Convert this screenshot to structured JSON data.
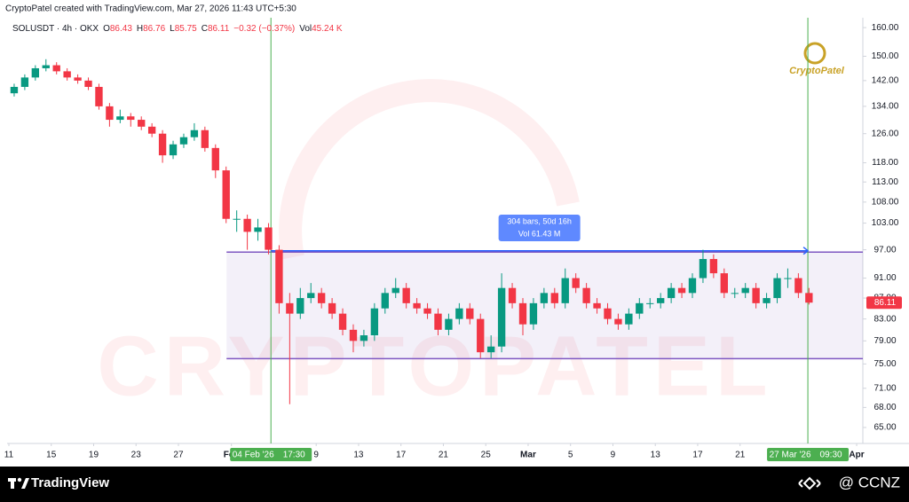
{
  "chart_data": {
    "type": "candlestick",
    "header": "CryptoPatel created with TradingView.com, Mar 27, 2026 11:43 UTC+5:30",
    "legend": {
      "symbol": "SOLUSDT · 4h · OKX",
      "items": [
        {
          "key": "O",
          "value": 86.43
        },
        {
          "key": "H",
          "value": 86.76
        },
        {
          "key": "L",
          "value": 85.75
        },
        {
          "key": "C",
          "value": 86.11
        }
      ],
      "change": "−0.32 (−0.37%)",
      "volume_key": "Vol",
      "volume": "45.24 K"
    },
    "up_color": "#089981",
    "down_color": "#f23645",
    "log_scale": true,
    "x": [
      "2026-01-11",
      "2026-01-12",
      "2026-01-13",
      "2026-01-14",
      "2026-01-15",
      "2026-01-16",
      "2026-01-17",
      "2026-01-18",
      "2026-01-19",
      "2026-01-20",
      "2026-01-21",
      "2026-01-22",
      "2026-01-23",
      "2026-01-24",
      "2026-01-25",
      "2026-01-26",
      "2026-01-27",
      "2026-01-28",
      "2026-01-29",
      "2026-01-30",
      "2026-01-31",
      "2026-02-01",
      "2026-02-02",
      "2026-02-03",
      "2026-02-04",
      "2026-02-05",
      "2026-02-06",
      "2026-02-07",
      "2026-02-08",
      "2026-02-09",
      "2026-02-10",
      "2026-02-11",
      "2026-02-12",
      "2026-02-13",
      "2026-02-14",
      "2026-02-15",
      "2026-02-16",
      "2026-02-17",
      "2026-02-18",
      "2026-02-19",
      "2026-02-20",
      "2026-02-21",
      "2026-02-22",
      "2026-02-23",
      "2026-02-24",
      "2026-02-25",
      "2026-02-26",
      "2026-02-27",
      "2026-02-28",
      "2026-03-01",
      "2026-03-02",
      "2026-03-03",
      "2026-03-04",
      "2026-03-05",
      "2026-03-06",
      "2026-03-07",
      "2026-03-08",
      "2026-03-09",
      "2026-03-10",
      "2026-03-11",
      "2026-03-12",
      "2026-03-13",
      "2026-03-14",
      "2026-03-15",
      "2026-03-16",
      "2026-03-17",
      "2026-03-18",
      "2026-03-19",
      "2026-03-20",
      "2026-03-21",
      "2026-03-22",
      "2026-03-23",
      "2026-03-24",
      "2026-03-25",
      "2026-03-26",
      "2026-03-27"
    ],
    "open": [
      138,
      140,
      143,
      146,
      147,
      145,
      143,
      142,
      140,
      134,
      130,
      131,
      130,
      128,
      126,
      120,
      123,
      125,
      127,
      122,
      116,
      104,
      104,
      101,
      102,
      97,
      86,
      84,
      87,
      88,
      86,
      84,
      81,
      79,
      80,
      85,
      88,
      89,
      86,
      85,
      84,
      81,
      83,
      85,
      83,
      77,
      78,
      89,
      86,
      82,
      86,
      88,
      86,
      91,
      89,
      86,
      85,
      83,
      82,
      84,
      86,
      86,
      87,
      89,
      88,
      91,
      95,
      92,
      88,
      88,
      89,
      86,
      87,
      91,
      91,
      88
    ],
    "high": [
      141,
      144,
      147,
      149,
      148,
      146,
      144,
      143,
      141,
      135,
      133,
      132,
      131,
      129,
      127,
      124,
      126,
      129,
      128,
      123,
      117,
      106,
      105,
      104,
      103,
      98,
      88,
      89,
      90,
      89,
      87,
      85,
      82,
      81,
      86,
      89,
      91,
      90,
      87,
      86,
      85,
      84,
      86,
      86,
      84,
      80,
      92,
      90,
      87,
      87,
      89,
      89,
      93,
      92,
      90,
      87,
      86,
      84,
      85,
      87,
      87,
      88,
      90,
      90,
      92,
      97,
      96,
      93,
      89,
      90,
      90,
      88,
      92,
      93,
      92,
      89
    ],
    "low": [
      137,
      139,
      142,
      145,
      144,
      142,
      141,
      139,
      133,
      128,
      129,
      128,
      127,
      125,
      118,
      119,
      122,
      124,
      121,
      114,
      103,
      101,
      97,
      99,
      96,
      84,
      68.5,
      83,
      86,
      85,
      83,
      80,
      77,
      78,
      79,
      84,
      87,
      85,
      84,
      83,
      80,
      80,
      82,
      82,
      76,
      76,
      77,
      85,
      80,
      81,
      85,
      85,
      85,
      88,
      85,
      84,
      82,
      81,
      81,
      83,
      85,
      85,
      86,
      87,
      87,
      90,
      91,
      87,
      87,
      87,
      85,
      85,
      86,
      89,
      87,
      85.75
    ],
    "close": [
      140,
      143,
      146,
      147,
      145,
      143,
      142,
      140,
      134,
      130,
      131,
      130,
      128,
      126,
      120,
      123,
      125,
      127,
      122,
      116,
      104,
      104,
      101,
      102,
      97,
      86,
      84,
      87,
      88,
      86,
      84,
      81,
      79,
      80,
      85,
      88,
      89,
      86,
      85,
      84,
      81,
      83,
      85,
      83,
      77,
      78,
      89,
      86,
      82,
      86,
      88,
      86,
      91,
      89,
      86,
      85,
      83,
      82,
      84,
      86,
      86,
      87,
      89,
      88,
      91,
      95,
      92,
      88,
      88,
      89,
      86,
      87,
      91,
      91,
      88,
      86.11
    ],
    "xlim": [
      "2026-01-10T20:00",
      "2026-04-01T14:00"
    ],
    "xticks": [
      {
        "value": "2026-01-11",
        "label": "11"
      },
      {
        "value": "2026-01-15",
        "label": "15"
      },
      {
        "value": "2026-01-19",
        "label": "19"
      },
      {
        "value": "2026-01-23",
        "label": "23"
      },
      {
        "value": "2026-01-27",
        "label": "27"
      },
      {
        "value": "2026-02-01",
        "label": "Feb"
      },
      {
        "value": "2026-02-09",
        "label": "9"
      },
      {
        "value": "2026-02-13",
        "label": "13"
      },
      {
        "value": "2026-02-17",
        "label": "17"
      },
      {
        "value": "2026-02-21",
        "label": "21"
      },
      {
        "value": "2026-02-25",
        "label": "25"
      },
      {
        "value": "2026-03-01",
        "label": "Mar"
      },
      {
        "value": "2026-03-05",
        "label": "5"
      },
      {
        "value": "2026-03-09",
        "label": "9"
      },
      {
        "value": "2026-03-13",
        "label": "13"
      },
      {
        "value": "2026-03-17",
        "label": "17"
      },
      {
        "value": "2026-03-21",
        "label": "21"
      },
      {
        "value": "2026-04-01",
        "label": "Apr"
      }
    ],
    "ylim": [
      62.7,
      163.6
    ],
    "yticks": [
      {
        "value": 160,
        "label": "160.00"
      },
      {
        "value": 150,
        "label": "150.00"
      },
      {
        "value": 142,
        "label": "142.00"
      },
      {
        "value": 134,
        "label": "134.00"
      },
      {
        "value": 126,
        "label": "126.00"
      },
      {
        "value": 118,
        "label": "118.00"
      },
      {
        "value": 113,
        "label": "113.00"
      },
      {
        "value": 108,
        "label": "108.00"
      },
      {
        "value": 103,
        "label": "103.00"
      },
      {
        "value": 97,
        "label": "97.00"
      },
      {
        "value": 91,
        "label": "91.00"
      },
      {
        "value": 87,
        "label": "87.00"
      },
      {
        "value": 83,
        "label": "83.00"
      },
      {
        "value": 79,
        "label": "79.00"
      },
      {
        "value": 75,
        "label": "75.00"
      },
      {
        "value": 71,
        "label": "71.00"
      },
      {
        "value": 68,
        "label": "68.00"
      },
      {
        "value": 65,
        "label": "65.00"
      }
    ],
    "range_box": {
      "start": "2026-01-31T13:00",
      "high": 96.5,
      "low": 75.9,
      "color": "#7e57c2"
    },
    "markers": [
      {
        "x": "2026-02-04T17:30",
        "date": "04 Feb '26",
        "time": "17:30"
      },
      {
        "x": "2026-03-27T09:30",
        "date": "27 Mar '26",
        "time": "09:30"
      }
    ],
    "marker_color": "#4caf50",
    "measure": {
      "bars": "304 bars, 50d 16h",
      "volume": "Vol 61.43 M",
      "color": "#2962ff"
    },
    "watermark": {
      "logo": "CryptoPatel",
      "big": "CRYPTOPATEL"
    },
    "footer": {
      "brand": "TradingView",
      "credit": "@ CCNZ"
    }
  }
}
